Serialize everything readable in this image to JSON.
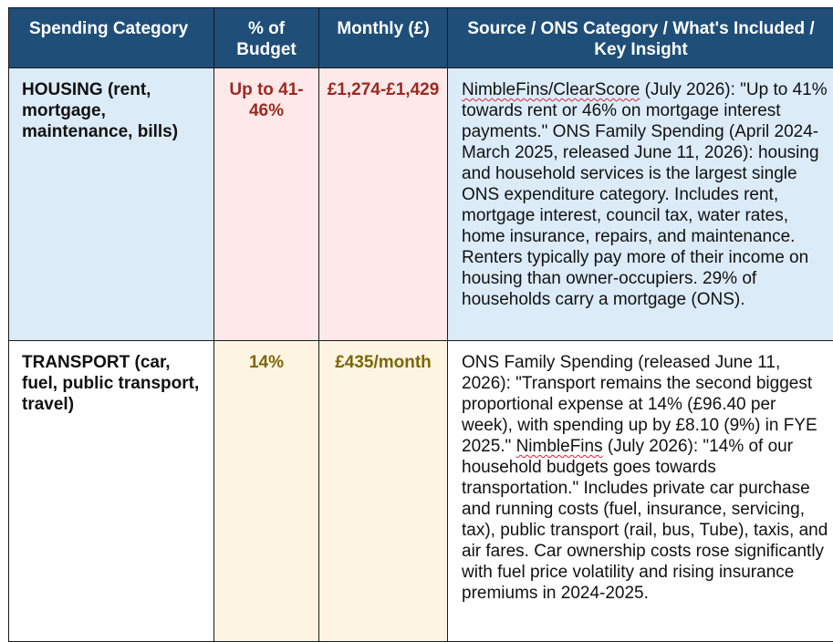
{
  "headers": {
    "category": "Spending Category",
    "percent": "% of Budget",
    "monthly": "Monthly (£)",
    "source": "Source / ONS Category / What's Included / Key Insight"
  },
  "rows": [
    {
      "category": "HOUSING (rent, mortgage, maintenance, bills)",
      "percent": "Up to 41-46%",
      "monthly": "£1,274-£1,429",
      "source_flagged": "NimbleFins/ClearScore",
      "source_rest": " (July 2026): \"Up to 41% towards rent or 46% on mortgage interest payments.\" ONS Family Spending (April 2024-March 2025, released June 11, 2026): housing and household services is the largest single ONS expenditure category. Includes rent, mortgage interest, council tax, water rates, home insurance, repairs, and maintenance. Renters typically pay more of their income on housing than owner-occupiers. 29% of households carry a mortgage (ONS)."
    },
    {
      "category": "TRANSPORT (car, fuel, public transport, travel)",
      "percent": "14%",
      "monthly": "£435/month",
      "source_start": "ONS Family Spending (released June 11, 2026): \"Transport remains the second biggest proportional expense at 14% (£96.40 per week), with spending up by £8.10 (9%) in FYE 2025.\" ",
      "source_flagged": "NimbleFins",
      "source_rest": " (July 2026): \"14% of our household budgets goes towards transportation.\" Includes private car purchase and running costs (fuel, insurance, servicing, tax), public transport (rail, bus, Tube), taxis, and air fares. Car ownership costs rose significantly with fuel price volatility and rising insurance premiums in 2024-2025."
    }
  ]
}
